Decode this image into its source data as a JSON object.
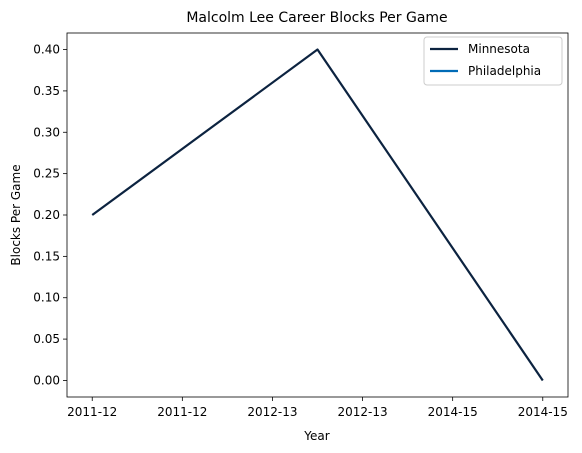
{
  "chart_data": {
    "type": "line",
    "title": "Malcolm Lee  Career Blocks Per Game",
    "xlabel": "Year",
    "ylabel": "Blocks Per Game",
    "x_tick_labels": [
      "2011-12",
      "2011-12",
      "2012-13",
      "2012-13",
      "2014-15",
      "2014-15"
    ],
    "x_tick_values": [
      0,
      0.5,
      1,
      1.5,
      2,
      2.5
    ],
    "x_range": [
      -0.14,
      2.64
    ],
    "y_ticks": [
      "0.00",
      "0.05",
      "0.10",
      "0.15",
      "0.20",
      "0.25",
      "0.30",
      "0.35",
      "0.40"
    ],
    "ylim": [
      -0.02,
      0.42
    ],
    "grid": false,
    "legend_position": "top-right",
    "series": [
      {
        "name": "Minnesota",
        "color": "#0c2340",
        "points": [
          {
            "x": 0,
            "y": 0.2
          },
          {
            "x": 1.25,
            "y": 0.4
          },
          {
            "x": 2.5,
            "y": 0.0
          }
        ]
      },
      {
        "name": "Philadelphia",
        "color": "#006bb6",
        "points": []
      }
    ]
  }
}
